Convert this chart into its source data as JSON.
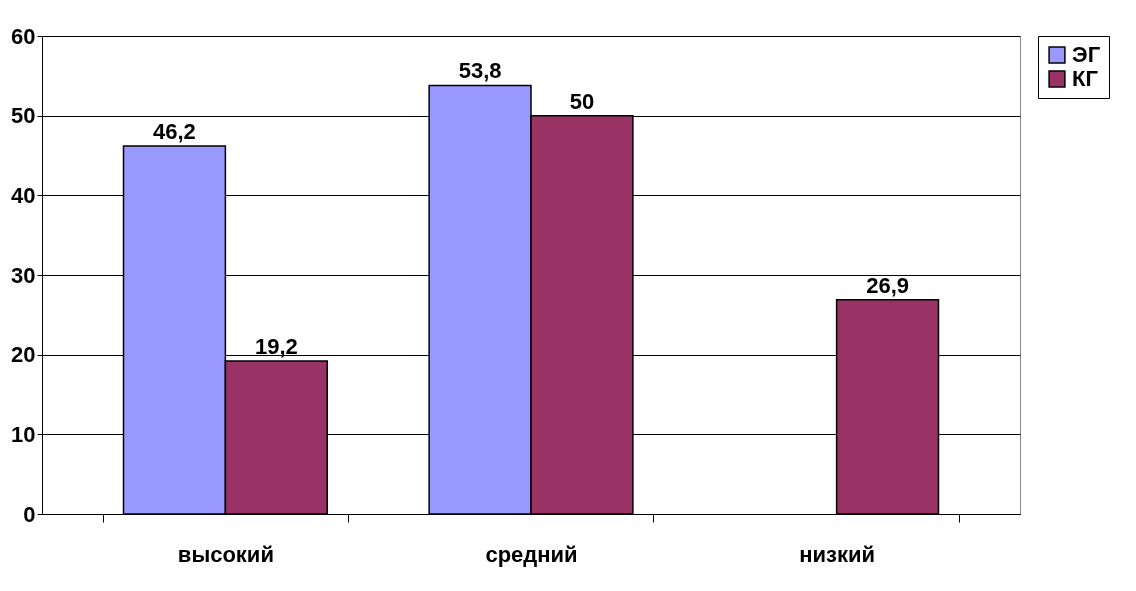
{
  "chart_data": {
    "type": "bar",
    "categories": [
      "высокий",
      "средний",
      "низкий"
    ],
    "series": [
      {
        "name": "ЭГ",
        "color": "#9999ff",
        "values": [
          46.2,
          53.8,
          null
        ],
        "value_labels": [
          "46,2",
          "53,8",
          null
        ]
      },
      {
        "name": "КГ",
        "color": "#993366",
        "values": [
          19.2,
          50,
          26.9
        ],
        "value_labels": [
          "19,2",
          "50",
          "26,9"
        ]
      }
    ],
    "ylim": [
      0,
      60
    ],
    "yticks": [
      0,
      10,
      20,
      30,
      40,
      50,
      60
    ],
    "grid": "y",
    "legend": "right"
  }
}
